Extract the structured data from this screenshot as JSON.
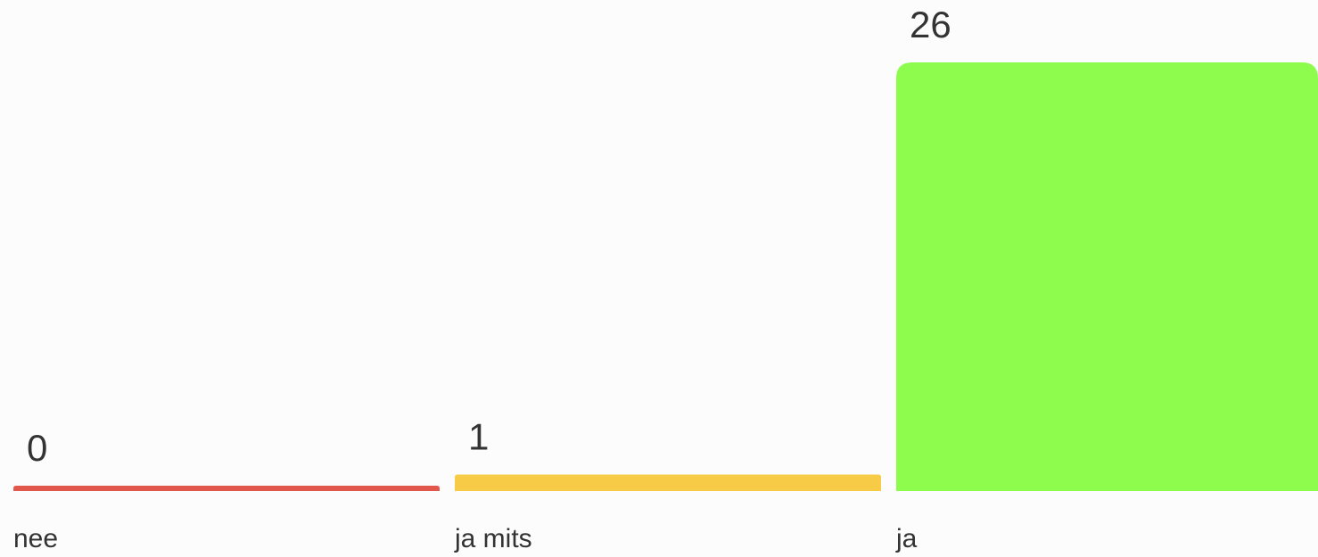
{
  "chart_data": {
    "type": "bar",
    "categories": [
      "nee",
      "ja mits",
      "ja"
    ],
    "values": [
      0,
      1,
      26
    ],
    "colors": [
      "#e2574c",
      "#f7cb45",
      "#8efc4d"
    ],
    "ylim": [
      0,
      26
    ],
    "grid": false,
    "legend": "none"
  }
}
